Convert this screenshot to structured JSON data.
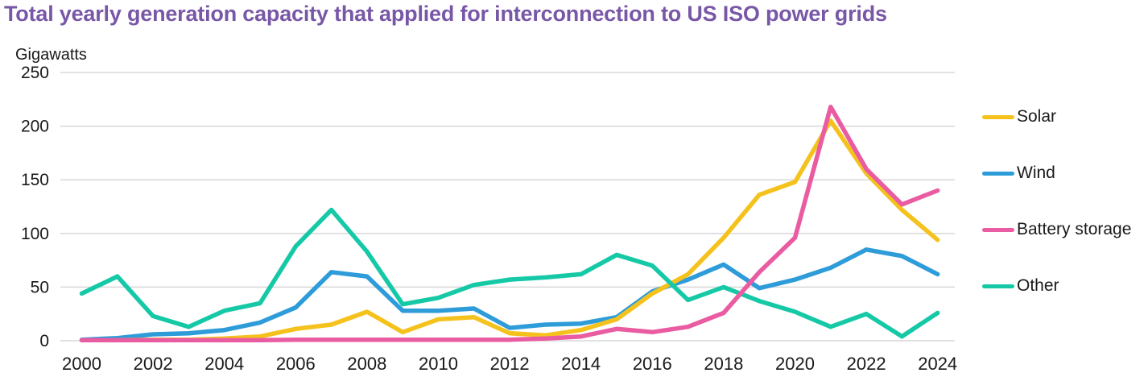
{
  "title": "Total yearly generation capacity that applied for interconnection to US ISO power grids",
  "title_color": "#7857A6",
  "chart_data": {
    "type": "line",
    "title": "Total yearly generation capacity that applied for interconnection to US ISO power grids",
    "ylabel": "Gigawatts",
    "xlabel": "",
    "x": [
      2000,
      2001,
      2002,
      2003,
      2004,
      2005,
      2006,
      2007,
      2008,
      2009,
      2010,
      2011,
      2012,
      2013,
      2014,
      2015,
      2016,
      2017,
      2018,
      2019,
      2020,
      2021,
      2022,
      2023,
      2024
    ],
    "xticks": [
      2000,
      2002,
      2004,
      2006,
      2008,
      2010,
      2012,
      2014,
      2016,
      2018,
      2020,
      2022,
      2024
    ],
    "yticks": [
      0,
      50,
      100,
      150,
      200,
      250
    ],
    "xlim": [
      2000,
      2024
    ],
    "ylim": [
      0,
      250
    ],
    "grid": true,
    "legend_position": "right",
    "colors": {
      "grid": "#D8D8D8",
      "tick_text": "#1a1a1a"
    },
    "series": [
      {
        "name": "Solar",
        "color": "#F5C21D",
        "values": [
          0.5,
          0.5,
          1,
          1,
          2,
          4,
          11,
          15,
          27,
          8,
          20,
          22,
          7,
          5,
          10,
          20,
          44,
          62,
          96,
          136,
          148,
          205,
          156,
          122,
          94
        ]
      },
      {
        "name": "Wind",
        "color": "#2E9CD9",
        "values": [
          1,
          2.5,
          6,
          7,
          10,
          17,
          31,
          64,
          60,
          28,
          28,
          30,
          12,
          15,
          16,
          22,
          46,
          57,
          71,
          49,
          57,
          68,
          85,
          79,
          62
        ]
      },
      {
        "name": "Battery storage",
        "color": "#EA5CA2",
        "values": [
          0.5,
          0.5,
          0.5,
          0.5,
          0.5,
          0.5,
          1,
          1,
          1,
          1,
          1,
          1,
          1,
          2,
          4,
          11,
          8,
          13,
          26,
          64,
          96,
          218,
          160,
          127,
          140
        ]
      },
      {
        "name": "Other",
        "color": "#15C9A7",
        "values": [
          44,
          60,
          23,
          13,
          28,
          35,
          88,
          122,
          83,
          34,
          40,
          52,
          57,
          59,
          62,
          80,
          70,
          38,
          50,
          37,
          27,
          13,
          25,
          4,
          26
        ]
      }
    ]
  }
}
